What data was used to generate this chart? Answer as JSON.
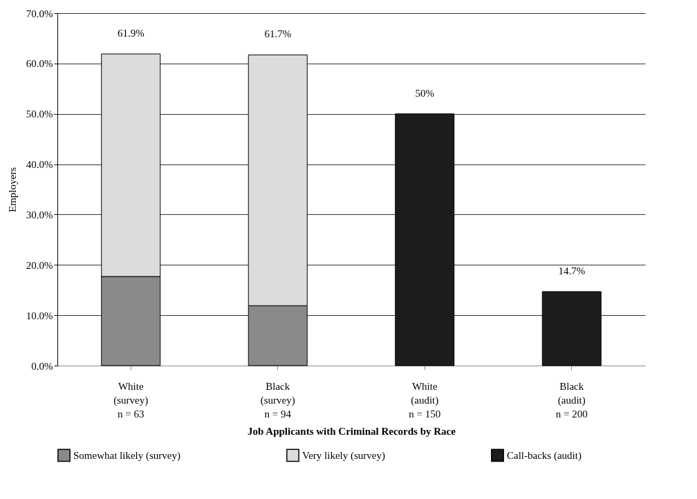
{
  "chart_data": {
    "type": "bar",
    "stacked": true,
    "xlabel": "Job Applicants with Criminal Records by Race",
    "ylabel": "Employers",
    "categories": [
      "White\n(survey)\nn = 63",
      "Black\n(survey)\nn = 94",
      "White\n(audit)\nn = 150",
      "Black\n(audit)\nn = 200"
    ],
    "series": [
      {
        "name": "Somewhat likely (survey)",
        "color": "#8a8a8a",
        "values": [
          17.7,
          11.9,
          null,
          null
        ]
      },
      {
        "name": "Very likely (survey)",
        "color": "#dcdcdc",
        "values": [
          44.2,
          49.8,
          null,
          null
        ]
      },
      {
        "name": "Call-backs (audit)",
        "color": "#1c1c1c",
        "values": [
          null,
          null,
          50,
          14.7
        ]
      }
    ],
    "totals": [
      "61.9%",
      "61.7%",
      "50%",
      "14.7%"
    ],
    "ylim": [
      0,
      70
    ],
    "yticks": [
      {
        "value": 0,
        "label": "0.0%"
      },
      {
        "value": 10,
        "label": "10.0%"
      },
      {
        "value": 20,
        "label": "20.0%"
      },
      {
        "value": 30,
        "label": "30.0%"
      },
      {
        "value": 40,
        "label": "40.0%"
      },
      {
        "value": 50,
        "label": "50.0%"
      },
      {
        "value": 60,
        "label": "60.0%"
      },
      {
        "value": 70,
        "label": "70.0%"
      }
    ],
    "grid": "y",
    "legend": "bottom"
  }
}
